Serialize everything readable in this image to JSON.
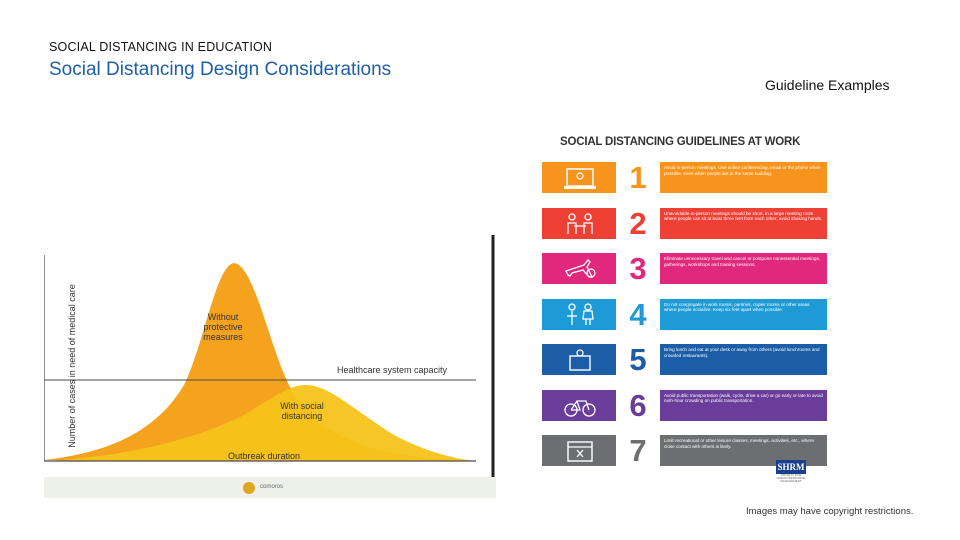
{
  "header": {
    "kicker": "SOCIAL DISTANCING IN EDUCATION",
    "title": "Social Distancing Design Considerations",
    "subtitle": "Guideline Examples"
  },
  "curve_figure": {
    "y_axis_label": "Number of cases in need of medical care",
    "x_axis_label": "Outbreak duration",
    "peak_label": "Without protective measures",
    "flat_label": "With social distancing",
    "capacity_label": "Healthcare system capacity",
    "footer_text": "comoros",
    "colors": {
      "peak": "#f5a21f",
      "flat": "#f6c31b",
      "line": "#4a4a4a"
    }
  },
  "infographic": {
    "title": "SOCIAL DISTANCING GUIDELINES AT WORK",
    "logo_text": "SHRM",
    "logo_subtext": "SOCIETY FOR HUMAN RESOURCE MANAGEMENT",
    "rows": [
      {
        "number": "1",
        "icon": "laptop-video-icon",
        "color": "#f7941d",
        "text": "Avoid in-person meetings. Use online conferencing, email or the phone when possible, even when people are in the same building."
      },
      {
        "number": "2",
        "icon": "two-people-meeting-icon",
        "color": "#ee4035",
        "text": "Unavoidable in-person meetings should be short, in a large meeting room where people can sit at least three feet from each other; avoid shaking hands."
      },
      {
        "number": "3",
        "icon": "airplane-no-icon",
        "color": "#e0287d",
        "text": "Eliminate unnecessary travel and cancel or postpone nonessential meetings, gatherings, workshops and training sessions."
      },
      {
        "number": "4",
        "icon": "people-standing-icon",
        "color": "#1e9bd7",
        "text": "Do not congregate in work rooms, pantries, copier rooms or other areas where people socialize. Keep six feet apart when possible."
      },
      {
        "number": "5",
        "icon": "lunch-bag-icon",
        "color": "#1b5ea7",
        "text": "Bring lunch and eat at your desk or away from others (avoid lunchrooms and crowded restaurants)."
      },
      {
        "number": "6",
        "icon": "bicycle-icon",
        "color": "#6a3d9a",
        "text": "Avoid public transportation (walk, cycle, drive a car) or go early or late to avoid rush-hour crowding on public transportation."
      },
      {
        "number": "7",
        "icon": "calendar-cancel-icon",
        "color": "#6d6e71",
        "text": "Limit recreational or other leisure classes, meetings, activities, etc., where close contact with others is likely."
      }
    ]
  },
  "footer": {
    "disclaimer": "Images may have copyright restrictions."
  }
}
